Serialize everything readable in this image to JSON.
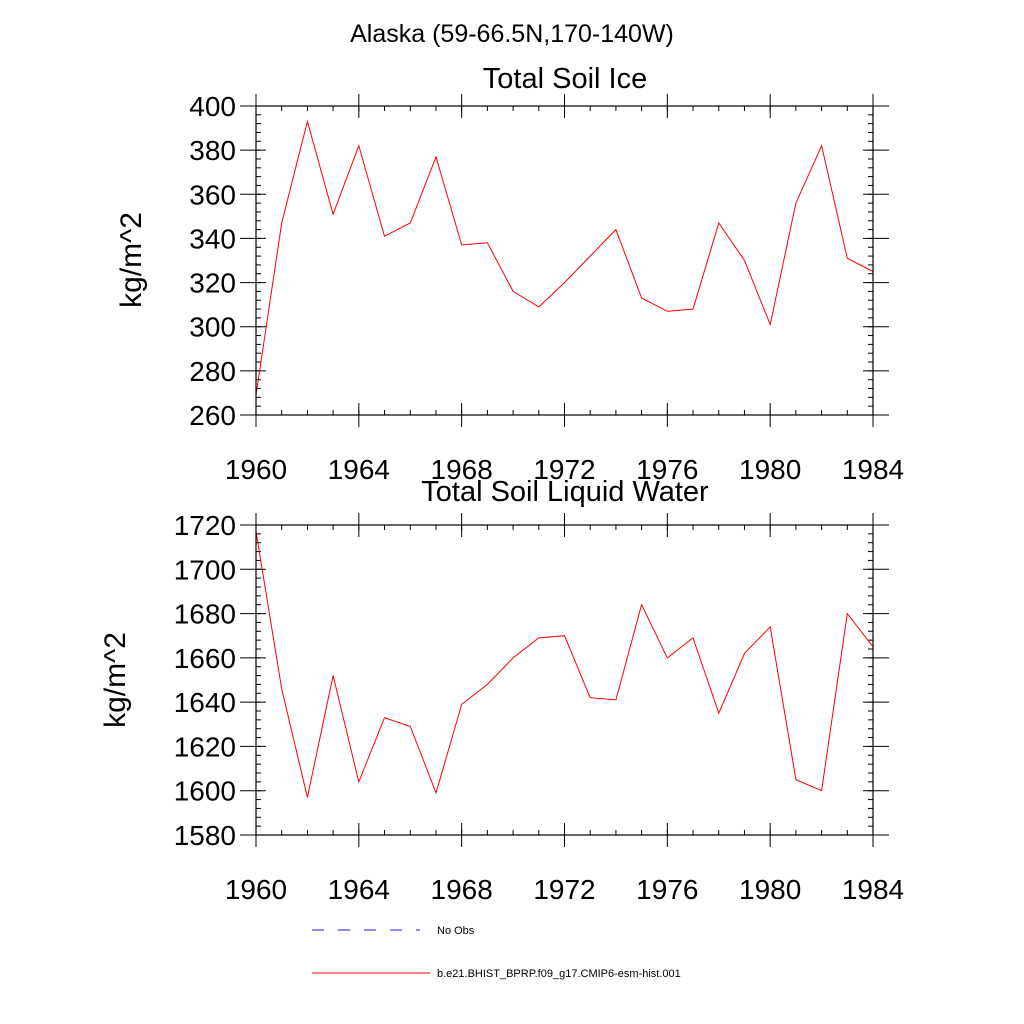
{
  "figure_title": "Alaska (59-66.5N,170-140W)",
  "colors": {
    "model": "#ff0000",
    "obs": "#1a1aff"
  },
  "legend": {
    "obs_label": "No Obs",
    "model_label": "b.e21.BHIST_BPRP.f09_g17.CMIP6-esm-hist.001"
  },
  "chart_data": [
    {
      "type": "line",
      "title": "Total Soil Ice",
      "xlabel": "",
      "ylabel": "kg/m^2",
      "xlim": [
        1960,
        1984
      ],
      "ylim": [
        260,
        400
      ],
      "x_ticks": [
        1960,
        1964,
        1968,
        1972,
        1976,
        1980,
        1984
      ],
      "y_ticks": [
        260,
        280,
        300,
        320,
        340,
        360,
        380,
        400
      ],
      "x_minor_step": 1,
      "y_minor_step": 4,
      "grid": false,
      "x": [
        1960,
        1961,
        1962,
        1963,
        1964,
        1965,
        1966,
        1967,
        1968,
        1969,
        1970,
        1971,
        1972,
        1973,
        1974,
        1975,
        1976,
        1977,
        1978,
        1979,
        1980,
        1981,
        1982,
        1983,
        1984
      ],
      "series": [
        {
          "color": "#ff0000",
          "values": [
            269,
            347,
            393,
            351,
            382,
            341,
            347,
            377,
            337,
            338,
            316,
            309,
            320,
            332,
            344,
            313,
            307,
            308,
            347,
            330,
            301,
            356,
            382,
            331,
            325
          ]
        }
      ]
    },
    {
      "type": "line",
      "title": "Total Soil Liquid Water",
      "xlabel": "",
      "ylabel": "kg/m^2",
      "xlim": [
        1960,
        1984
      ],
      "ylim": [
        1580,
        1720
      ],
      "x_ticks": [
        1960,
        1964,
        1968,
        1972,
        1976,
        1980,
        1984
      ],
      "y_ticks": [
        1580,
        1600,
        1620,
        1640,
        1660,
        1680,
        1700,
        1720
      ],
      "x_minor_step": 1,
      "y_minor_step": 4,
      "grid": false,
      "x": [
        1960,
        1961,
        1962,
        1963,
        1964,
        1965,
        1966,
        1967,
        1968,
        1969,
        1970,
        1971,
        1972,
        1973,
        1974,
        1975,
        1976,
        1977,
        1978,
        1979,
        1980,
        1981,
        1982,
        1983,
        1984
      ],
      "series": [
        {
          "color": "#ff0000",
          "values": [
            1717,
            1646,
            1597,
            1652,
            1604,
            1633,
            1629,
            1599,
            1639,
            1648,
            1660,
            1669,
            1670,
            1642,
            1641,
            1684,
            1660,
            1669,
            1635,
            1662,
            1674,
            1605,
            1600,
            1680,
            1665
          ]
        }
      ]
    }
  ]
}
